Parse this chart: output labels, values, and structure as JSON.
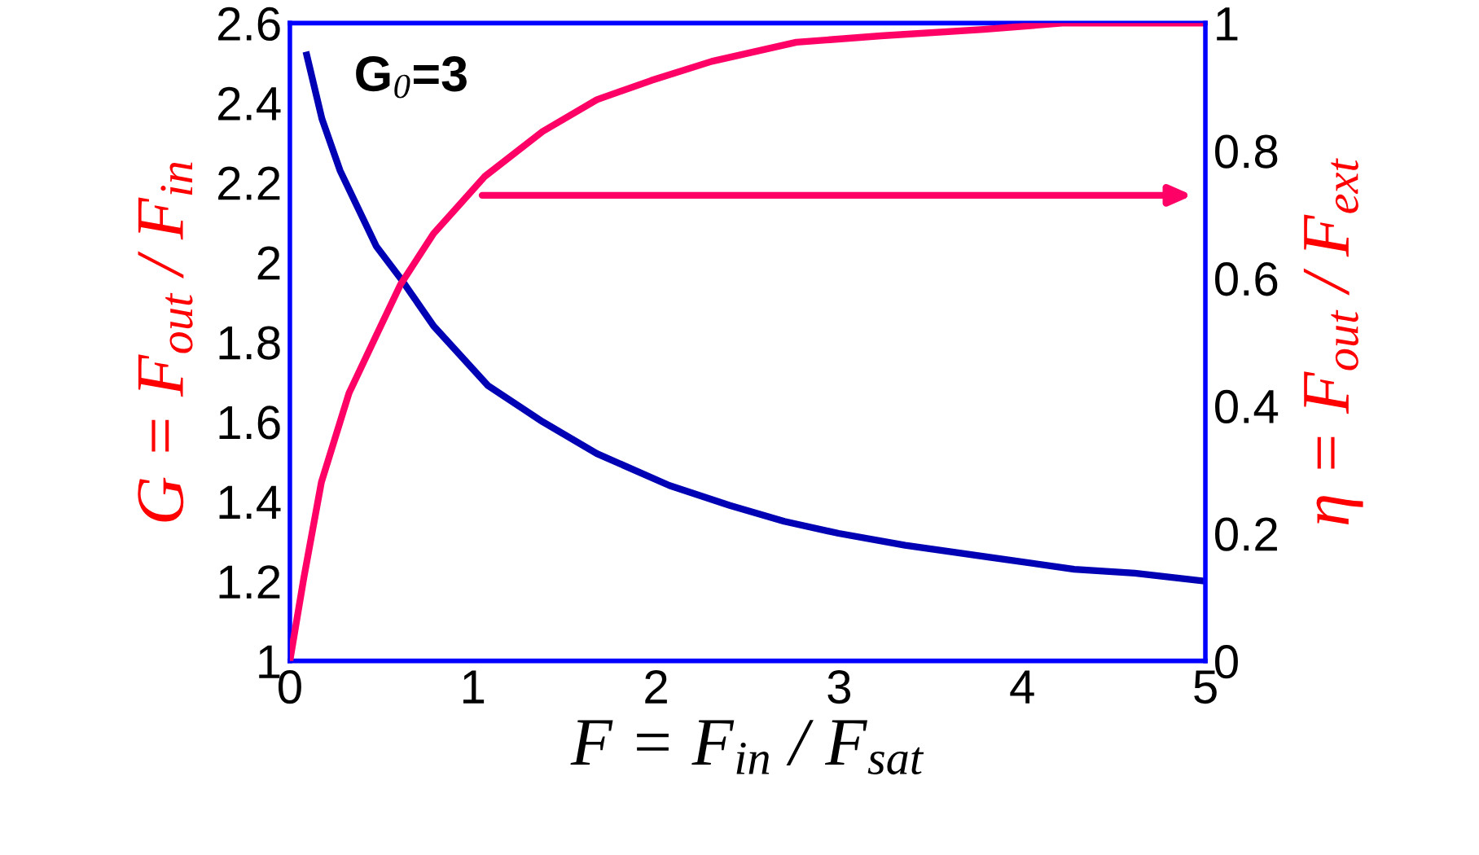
{
  "chart_data": {
    "type": "line",
    "xlabel": "F = F$_{in}$ / F$_{sat}$",
    "ylabel": "G = F$_{out}$ / F$_{in}$",
    "y2label": "η = F$_{out}$ / F$_{ext}$",
    "annotations": [
      "G$_{0}$=3"
    ],
    "xlim": [
      0,
      5
    ],
    "xticks": [
      0,
      1,
      2,
      3,
      4,
      5
    ],
    "ylim": [
      1,
      2.6
    ],
    "yticks": [
      1,
      1.2,
      1.4,
      1.6,
      1.8,
      2,
      2.2,
      2.4,
      2.6
    ],
    "y2lim": [
      0,
      1
    ],
    "y2ticks": [
      0,
      0.2,
      0.4,
      0.6,
      0.8,
      1
    ],
    "grid": false,
    "series": [
      {
        "color": "#0000b4",
        "x": [
          0.092,
          0.175,
          0.274,
          0.472,
          0.604,
          0.785,
          1.083,
          1.38,
          1.677,
          2.073,
          2.403,
          2.7,
          2.997,
          3.36,
          3.822,
          4.284,
          4.614,
          5.0
        ],
        "values": [
          2.52,
          2.36,
          2.23,
          2.04,
          1.96,
          1.84,
          1.69,
          1.6,
          1.52,
          1.44,
          1.39,
          1.35,
          1.32,
          1.29,
          1.26,
          1.23,
          1.22,
          1.2
        ]
      },
      {
        "color": "#ff0066",
        "axis": "y2",
        "x": [
          0,
          0.076,
          0.172,
          0.323,
          0.488,
          0.604,
          0.785,
          1.066,
          1.38,
          1.677,
          1.974,
          2.304,
          2.766,
          3.228,
          3.789,
          4.218,
          5.0
        ],
        "values": [
          0,
          0.13,
          0.28,
          0.42,
          0.52,
          0.59,
          0.67,
          0.76,
          0.83,
          0.88,
          0.91,
          0.94,
          0.97,
          0.98,
          0.99,
          1.0,
          1.0
        ]
      }
    ]
  }
}
